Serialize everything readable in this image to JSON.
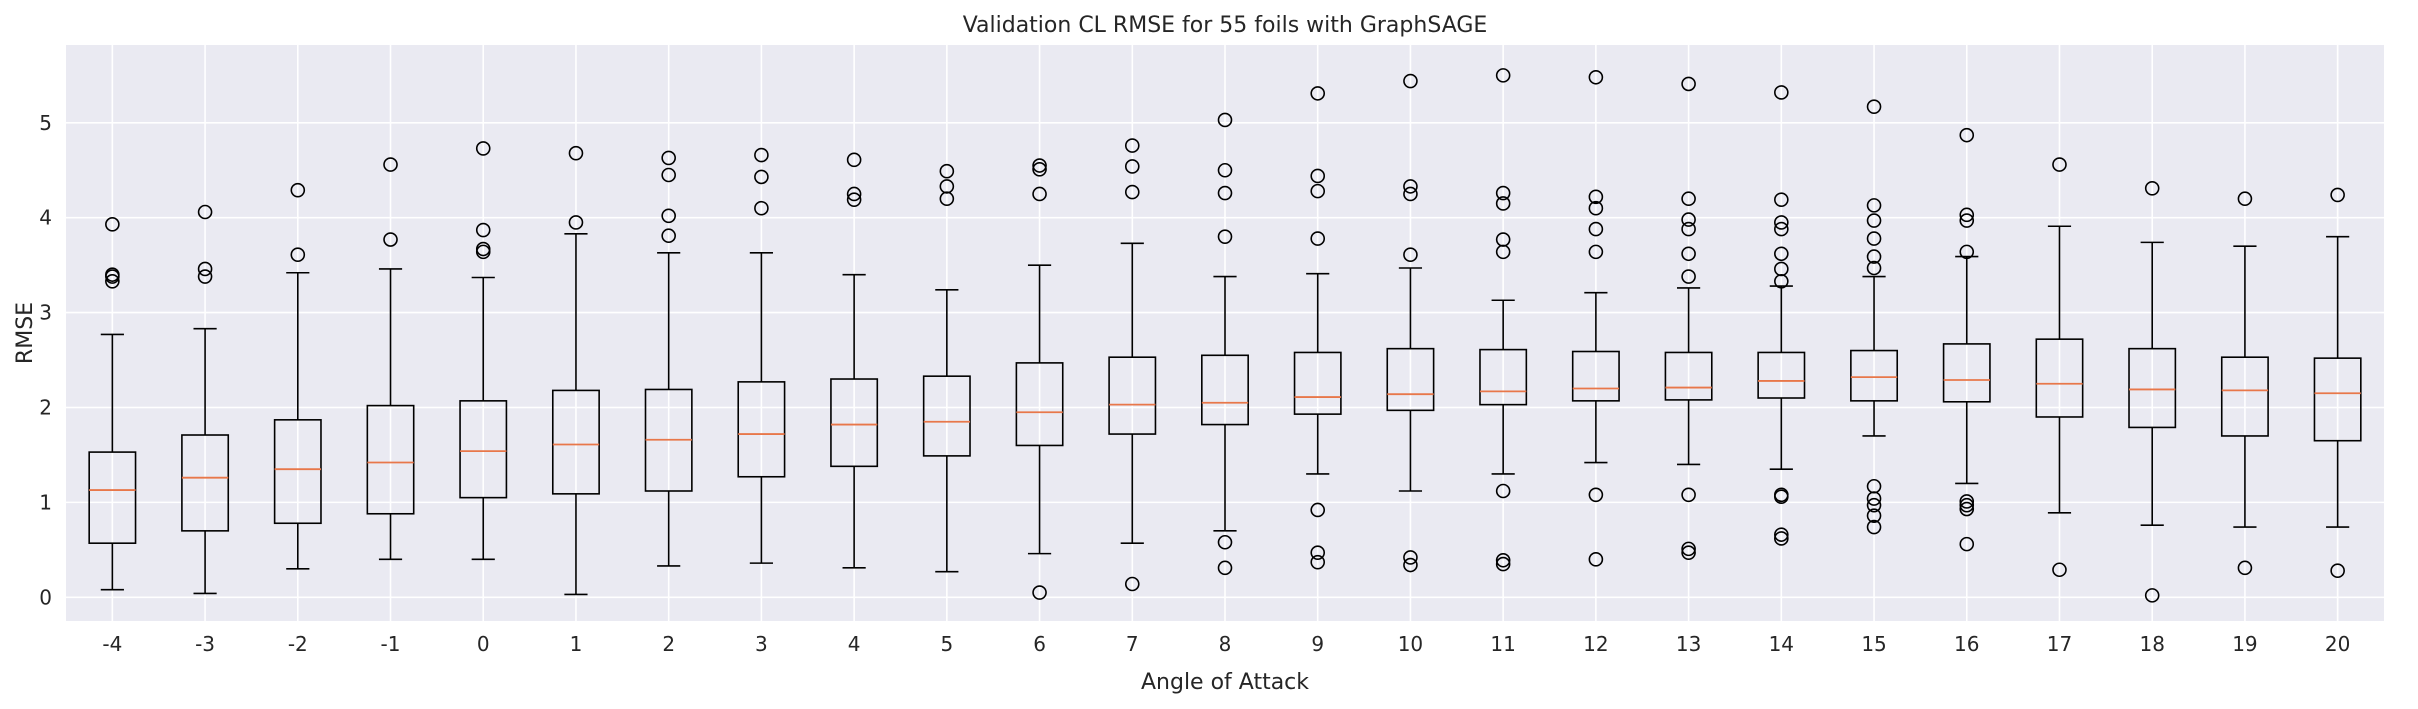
{
  "chart_data": {
    "type": "box",
    "title": "Validation CL RMSE for 55 foils with GraphSAGE",
    "xlabel": "Angle of Attack",
    "ylabel": "RMSE",
    "ylim": [
      -0.25,
      5.82
    ],
    "yticks": [
      0,
      1,
      2,
      3,
      4,
      5
    ],
    "grid": true,
    "colors": {
      "background": "#eaeaf2",
      "grid": "#ffffff",
      "box": "#000000",
      "median": "#e8774a"
    },
    "categories": [
      "-4",
      "-3",
      "-2",
      "-1",
      "0",
      "1",
      "2",
      "3",
      "4",
      "5",
      "6",
      "7",
      "8",
      "9",
      "10",
      "11",
      "12",
      "13",
      "14",
      "15",
      "16",
      "17",
      "18",
      "19",
      "20"
    ],
    "boxes": [
      {
        "whislo": 0.08,
        "q1": 0.57,
        "med": 1.13,
        "q3": 1.53,
        "whishi": 2.77,
        "fliers": [
          3.33,
          3.38,
          3.4,
          3.93
        ]
      },
      {
        "whislo": 0.04,
        "q1": 0.7,
        "med": 1.26,
        "q3": 1.71,
        "whishi": 2.83,
        "fliers": [
          3.38,
          3.46,
          4.06
        ]
      },
      {
        "whislo": 0.3,
        "q1": 0.78,
        "med": 1.35,
        "q3": 1.87,
        "whishi": 3.42,
        "fliers": [
          3.61,
          4.29
        ]
      },
      {
        "whislo": 0.4,
        "q1": 0.88,
        "med": 1.42,
        "q3": 2.02,
        "whishi": 3.46,
        "fliers": [
          3.77,
          4.56
        ]
      },
      {
        "whislo": 0.4,
        "q1": 1.05,
        "med": 1.54,
        "q3": 2.07,
        "whishi": 3.37,
        "fliers": [
          3.64,
          3.67,
          3.87,
          4.73
        ]
      },
      {
        "whislo": 0.03,
        "q1": 1.09,
        "med": 1.61,
        "q3": 2.18,
        "whishi": 3.83,
        "fliers": [
          3.95,
          4.68
        ]
      },
      {
        "whislo": 0.33,
        "q1": 1.12,
        "med": 1.66,
        "q3": 2.19,
        "whishi": 3.63,
        "fliers": [
          3.81,
          4.02,
          4.45,
          4.63
        ]
      },
      {
        "whislo": 0.36,
        "q1": 1.27,
        "med": 1.72,
        "q3": 2.27,
        "whishi": 3.63,
        "fliers": [
          4.1,
          4.43,
          4.66
        ]
      },
      {
        "whislo": 0.31,
        "q1": 1.38,
        "med": 1.82,
        "q3": 2.3,
        "whishi": 3.4,
        "fliers": [
          4.19,
          4.25,
          4.61
        ]
      },
      {
        "whislo": 0.27,
        "q1": 1.49,
        "med": 1.85,
        "q3": 2.33,
        "whishi": 3.24,
        "fliers": [
          4.2,
          4.33,
          4.49
        ]
      },
      {
        "whislo": 0.46,
        "q1": 1.6,
        "med": 1.95,
        "q3": 2.47,
        "whishi": 3.5,
        "fliers": [
          0.05,
          4.25,
          4.51,
          4.55
        ]
      },
      {
        "whislo": 0.57,
        "q1": 1.72,
        "med": 2.03,
        "q3": 2.53,
        "whishi": 3.73,
        "fliers": [
          0.14,
          4.27,
          4.54,
          4.76
        ]
      },
      {
        "whislo": 0.7,
        "q1": 1.82,
        "med": 2.05,
        "q3": 2.55,
        "whishi": 3.38,
        "fliers": [
          0.31,
          0.58,
          3.8,
          4.26,
          4.5,
          5.03
        ]
      },
      {
        "whislo": 1.3,
        "q1": 1.93,
        "med": 2.11,
        "q3": 2.58,
        "whishi": 3.41,
        "fliers": [
          0.37,
          0.47,
          0.92,
          3.78,
          4.28,
          4.44,
          5.31
        ]
      },
      {
        "whislo": 1.12,
        "q1": 1.97,
        "med": 2.14,
        "q3": 2.62,
        "whishi": 3.47,
        "fliers": [
          0.34,
          0.42,
          3.61,
          4.25,
          4.33,
          5.44
        ]
      },
      {
        "whislo": 1.3,
        "q1": 2.03,
        "med": 2.17,
        "q3": 2.61,
        "whishi": 3.13,
        "fliers": [
          0.35,
          0.39,
          1.12,
          3.64,
          3.77,
          4.15,
          4.26,
          5.5
        ]
      },
      {
        "whislo": 1.42,
        "q1": 2.07,
        "med": 2.2,
        "q3": 2.59,
        "whishi": 3.21,
        "fliers": [
          0.4,
          1.08,
          3.64,
          3.88,
          4.1,
          4.22,
          5.48
        ]
      },
      {
        "whislo": 1.4,
        "q1": 2.08,
        "med": 2.21,
        "q3": 2.58,
        "whishi": 3.26,
        "fliers": [
          0.47,
          0.51,
          1.08,
          3.38,
          3.62,
          3.88,
          3.98,
          4.2,
          5.41
        ]
      },
      {
        "whislo": 1.35,
        "q1": 2.1,
        "med": 2.28,
        "q3": 2.58,
        "whishi": 3.28,
        "fliers": [
          0.62,
          0.66,
          1.06,
          1.08,
          3.33,
          3.46,
          3.62,
          3.88,
          3.95,
          4.19,
          5.32
        ]
      },
      {
        "whislo": 1.7,
        "q1": 2.07,
        "med": 2.32,
        "q3": 2.6,
        "whishi": 3.38,
        "fliers": [
          0.74,
          0.86,
          0.97,
          1.04,
          1.17,
          3.47,
          3.59,
          3.78,
          3.97,
          4.13,
          5.17
        ]
      },
      {
        "whislo": 1.2,
        "q1": 2.06,
        "med": 2.29,
        "q3": 2.67,
        "whishi": 3.59,
        "fliers": [
          0.56,
          0.93,
          0.97,
          1.01,
          3.64,
          3.97,
          4.03,
          4.87
        ]
      },
      {
        "whislo": 0.89,
        "q1": 1.9,
        "med": 2.25,
        "q3": 2.72,
        "whishi": 3.91,
        "fliers": [
          0.29,
          4.56
        ]
      },
      {
        "whislo": 0.76,
        "q1": 1.79,
        "med": 2.19,
        "q3": 2.62,
        "whishi": 3.74,
        "fliers": [
          0.02,
          4.31
        ]
      },
      {
        "whislo": 0.74,
        "q1": 1.7,
        "med": 2.18,
        "q3": 2.53,
        "whishi": 3.7,
        "fliers": [
          0.31,
          4.2
        ]
      },
      {
        "whislo": 0.74,
        "q1": 1.65,
        "med": 2.15,
        "q3": 2.52,
        "whishi": 3.8,
        "fliers": [
          0.28,
          4.24
        ]
      }
    ]
  }
}
